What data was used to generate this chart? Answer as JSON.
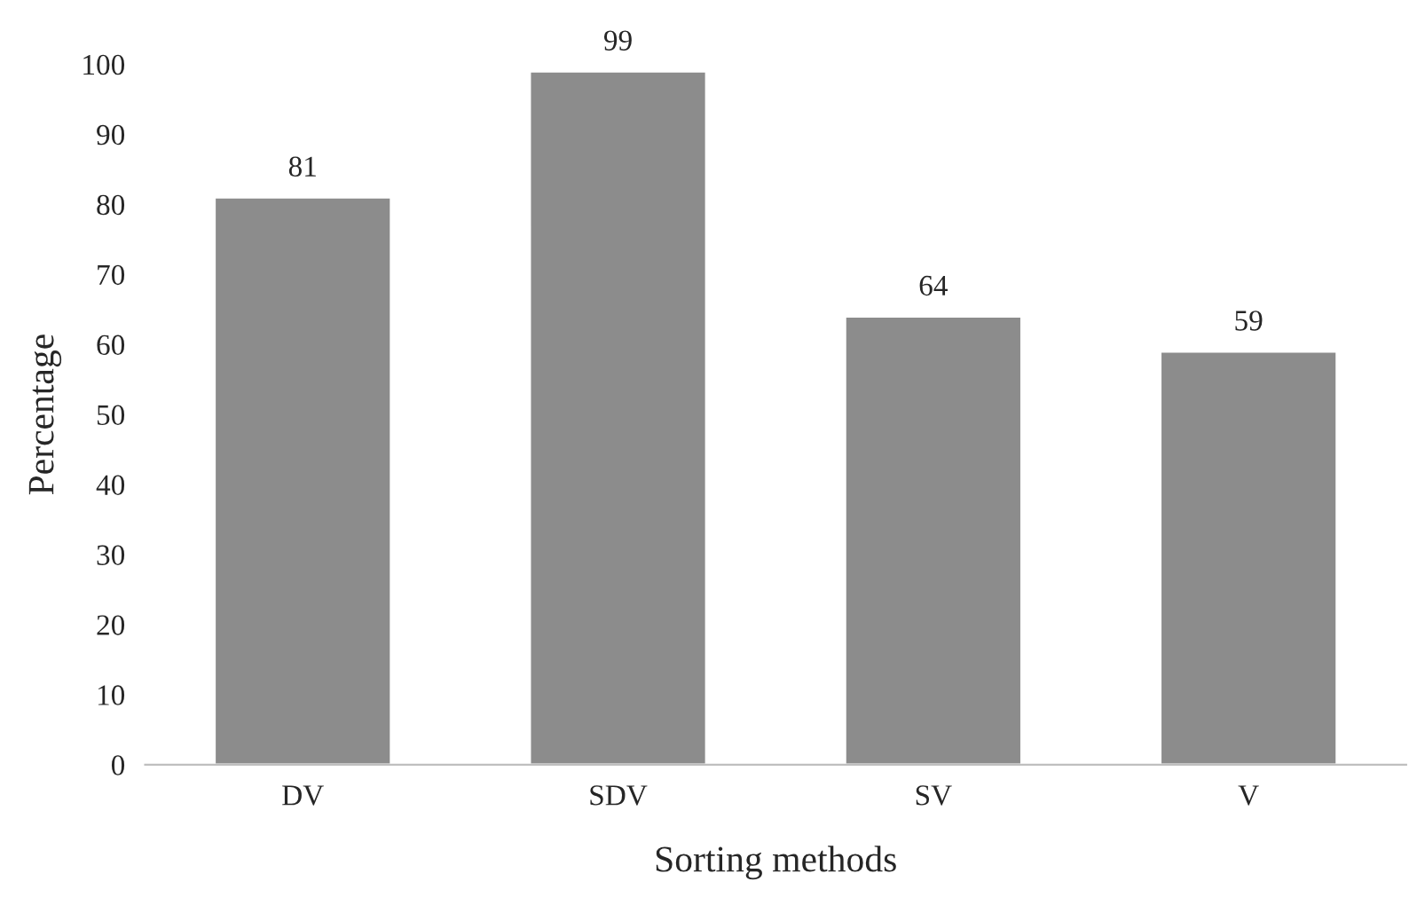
{
  "chart_data": {
    "type": "bar",
    "xlabel": "Sorting methods",
    "ylabel": "Percentage",
    "categories": [
      "DV",
      "SDV",
      "SV",
      "V"
    ],
    "values": [
      81,
      99,
      64,
      59
    ],
    "color": "#8c8c8c",
    "ylim": [
      0,
      100
    ],
    "yticks": [
      0,
      10,
      20,
      30,
      40,
      50,
      60,
      70,
      80,
      90,
      100
    ],
    "data_labels": true,
    "grid": false,
    "legend": false
  }
}
